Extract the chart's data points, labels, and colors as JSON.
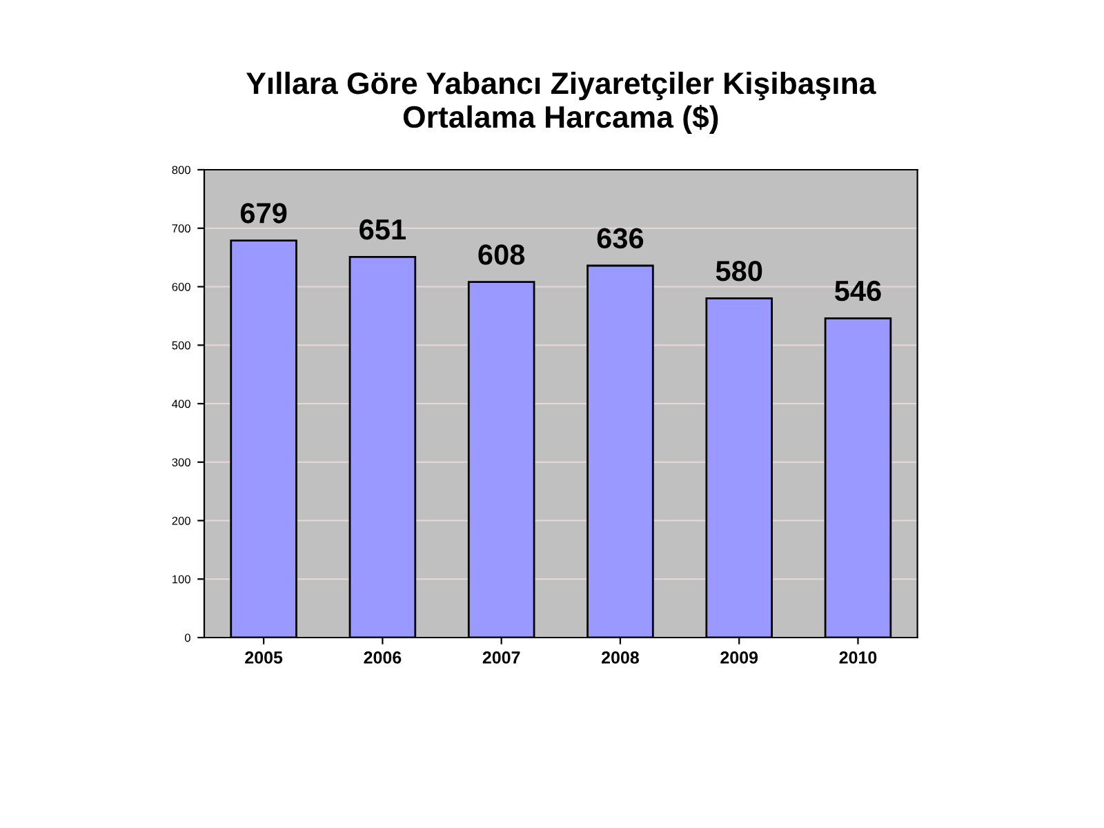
{
  "chart_data": {
    "type": "bar",
    "title": "Yıllara Göre Yabancı Ziyaretçiler Kişibaşına\nOrtalama Harcama ($)",
    "categories": [
      "2005",
      "2006",
      "2007",
      "2008",
      "2009",
      "2010"
    ],
    "values": [
      679,
      651,
      608,
      636,
      580,
      546
    ],
    "color": "#9999ff",
    "ylim": [
      0,
      800
    ],
    "yticks": [
      0,
      100,
      200,
      300,
      400,
      500,
      600,
      700,
      800
    ],
    "grid": "y",
    "data_labels": true
  }
}
